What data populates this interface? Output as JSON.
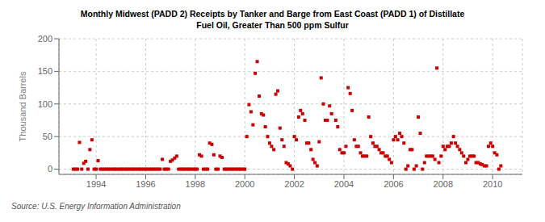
{
  "chart_data": {
    "type": "scatter",
    "title": "Monthly Midwest (PADD 2) Receipts by Tanker and Barge from East Coast (PADD 1) of Distillate",
    "subtitle": "Fuel Oil, Greater Than 500 ppm Sulfur",
    "y_label": "Thousand Barrels",
    "annotations": [
      "Source: U.S. Energy Information Administration"
    ],
    "color": "#cc0000",
    "marker": "square",
    "grid": true,
    "xlim": [
      1992.5,
      2011.2
    ],
    "xticks": [
      1994,
      1996,
      1998,
      2000,
      2002,
      2004,
      2006,
      2008,
      2010
    ],
    "ylim": [
      -8,
      200
    ],
    "yticks": [
      0,
      50,
      100,
      150,
      200
    ],
    "x": [
      1993.08,
      1993.17,
      1993.25,
      1993.33,
      1993.42,
      1993.5,
      1993.58,
      1993.67,
      1993.75,
      1993.83,
      1993.92,
      1994.0,
      1994.08,
      1994.17,
      1994.25,
      1994.33,
      1994.42,
      1994.5,
      1994.58,
      1994.67,
      1994.75,
      1994.83,
      1994.92,
      1995.0,
      1995.08,
      1995.17,
      1995.25,
      1995.33,
      1995.42,
      1995.5,
      1995.58,
      1995.67,
      1995.75,
      1995.83,
      1995.92,
      1996.0,
      1996.08,
      1996.17,
      1996.25,
      1996.33,
      1996.42,
      1996.5,
      1996.58,
      1996.67,
      1996.75,
      1996.83,
      1996.92,
      1997.0,
      1997.08,
      1997.17,
      1997.25,
      1997.33,
      1997.42,
      1997.5,
      1997.58,
      1997.67,
      1997.75,
      1997.83,
      1997.92,
      1998.0,
      1998.08,
      1998.17,
      1998.25,
      1998.33,
      1998.42,
      1998.5,
      1998.58,
      1998.67,
      1998.75,
      1998.83,
      1998.92,
      1999.0,
      1999.08,
      1999.17,
      1999.25,
      1999.33,
      1999.42,
      1999.5,
      1999.58,
      1999.67,
      1999.75,
      1999.83,
      1999.92,
      2000.0,
      2000.08,
      2000.17,
      2000.25,
      2000.33,
      2000.42,
      2000.5,
      2000.58,
      2000.67,
      2000.75,
      2000.83,
      2000.92,
      2001.0,
      2001.08,
      2001.17,
      2001.25,
      2001.33,
      2001.42,
      2001.5,
      2001.58,
      2001.67,
      2001.75,
      2001.83,
      2001.92,
      2002.0,
      2002.08,
      2002.17,
      2002.25,
      2002.33,
      2002.42,
      2002.5,
      2002.58,
      2002.67,
      2002.75,
      2002.83,
      2002.92,
      2003.0,
      2003.08,
      2003.17,
      2003.25,
      2003.33,
      2003.42,
      2003.5,
      2003.67,
      2003.75,
      2003.83,
      2003.92,
      2004.0,
      2004.08,
      2004.17,
      2004.25,
      2004.33,
      2004.42,
      2004.5,
      2004.58,
      2004.67,
      2004.75,
      2004.83,
      2004.92,
      2005.0,
      2005.08,
      2005.17,
      2005.25,
      2005.33,
      2005.42,
      2005.5,
      2005.58,
      2005.67,
      2005.75,
      2005.83,
      2005.92,
      2006.0,
      2006.08,
      2006.17,
      2006.25,
      2006.33,
      2006.42,
      2006.5,
      2006.58,
      2006.67,
      2006.75,
      2006.83,
      2006.92,
      2007.0,
      2007.08,
      2007.17,
      2007.25,
      2007.33,
      2007.42,
      2007.5,
      2007.58,
      2007.67,
      2007.75,
      2007.83,
      2007.92,
      2008.0,
      2008.08,
      2008.17,
      2008.25,
      2008.33,
      2008.42,
      2008.5,
      2008.58,
      2008.67,
      2008.75,
      2008.83,
      2008.92,
      2009.0,
      2009.08,
      2009.17,
      2009.25,
      2009.33,
      2009.42,
      2009.5,
      2009.58,
      2009.67,
      2009.75,
      2009.83,
      2009.92,
      2010.0,
      2010.08,
      2010.17,
      2010.25,
      2010.33
    ],
    "values": [
      0,
      0,
      0,
      41,
      0,
      9,
      12,
      0,
      30,
      45,
      0,
      0,
      13,
      0,
      0,
      0,
      0,
      0,
      0,
      0,
      0,
      0,
      0,
      0,
      0,
      0,
      0,
      0,
      0,
      0,
      0,
      0,
      0,
      0,
      0,
      0,
      0,
      0,
      0,
      0,
      0,
      0,
      0,
      15,
      0,
      0,
      0,
      12,
      14,
      17,
      20,
      0,
      0,
      0,
      0,
      0,
      0,
      0,
      0,
      0,
      0,
      22,
      20,
      0,
      0,
      0,
      40,
      38,
      22,
      0,
      0,
      20,
      18,
      0,
      0,
      0,
      0,
      0,
      0,
      0,
      0,
      0,
      0,
      0,
      50,
      99,
      88,
      68,
      147,
      165,
      112,
      85,
      83,
      65,
      50,
      40,
      35,
      30,
      115,
      120,
      63,
      45,
      35,
      10,
      8,
      5,
      0,
      50,
      45,
      80,
      90,
      85,
      75,
      40,
      40,
      30,
      15,
      10,
      5,
      42,
      140,
      100,
      75,
      75,
      97,
      85,
      75,
      65,
      30,
      25,
      25,
      35,
      125,
      116,
      90,
      45,
      35,
      35,
      25,
      20,
      20,
      20,
      80,
      50,
      40,
      35,
      35,
      30,
      25,
      25,
      20,
      20,
      15,
      10,
      45,
      50,
      45,
      55,
      50,
      40,
      0,
      5,
      30,
      30,
      0,
      5,
      80,
      55,
      0,
      10,
      20,
      20,
      20,
      20,
      15,
      155,
      10,
      20,
      35,
      30,
      35,
      35,
      40,
      50,
      40,
      35,
      30,
      25,
      20,
      10,
      15,
      20,
      20,
      20,
      10,
      10,
      8,
      7,
      5,
      5,
      35,
      40,
      35,
      25,
      22,
      0,
      5
    ]
  }
}
